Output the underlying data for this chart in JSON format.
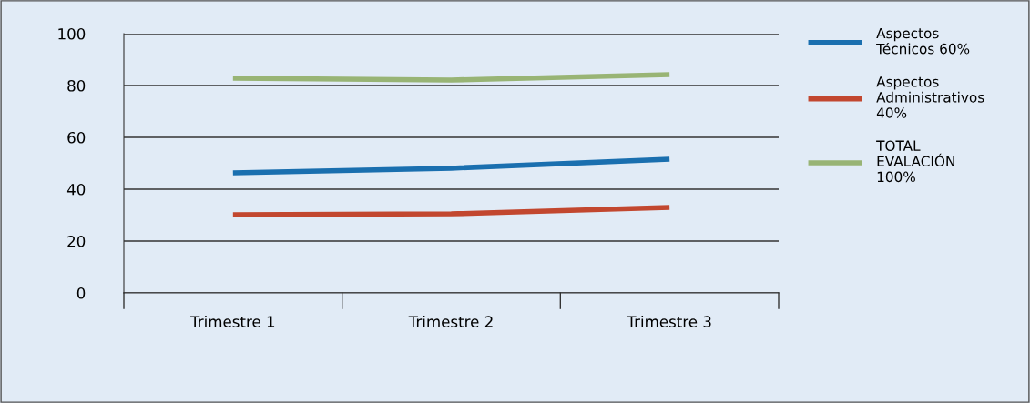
{
  "chart_data": {
    "type": "line",
    "categories": [
      "Trimestre 1",
      "Trimestre 2",
      "Trimestre 3"
    ],
    "series": [
      {
        "name": "Aspectos\nTécnicos 60%",
        "color": "#1a6faf",
        "values": [
          46.3,
          48.1,
          51.6
        ]
      },
      {
        "name": "Aspectos\nAdministrativos\n40%",
        "color": "#c2472f",
        "values": [
          30.2,
          30.5,
          33.0
        ]
      },
      {
        "name": "TOTAL\nEVALACIÓN\n100%",
        "color": "#98b475",
        "values": [
          82.8,
          82.1,
          84.2
        ]
      }
    ],
    "ylim": [
      0,
      100
    ],
    "yticks": [
      0,
      20,
      40,
      60,
      80,
      100
    ],
    "grid": "y",
    "legend": "right",
    "marker": "none",
    "line_style": "solid"
  }
}
